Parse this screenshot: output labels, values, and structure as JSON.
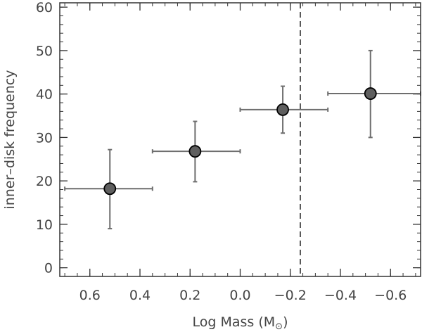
{
  "chart_data": {
    "type": "scatter",
    "title": "",
    "xlabel": "Log Mass (M",
    "xlabel_symbol": "⊙",
    "xlabel_close": ")",
    "ylabel": "inner–disk frequency",
    "x_reversed": true,
    "xlim": [
      0.72,
      -0.72
    ],
    "ylim": [
      -2,
      61
    ],
    "x_ticks": [
      {
        "value": 0.6,
        "label": "0.6"
      },
      {
        "value": 0.4,
        "label": "0.4"
      },
      {
        "value": 0.2,
        "label": "0.2"
      },
      {
        "value": 0.0,
        "label": "0.0"
      },
      {
        "value": -0.2,
        "label": "−0.2"
      },
      {
        "value": -0.4,
        "label": "−0.4"
      },
      {
        "value": -0.6,
        "label": "−0.6"
      }
    ],
    "x_minor_step": 0.05,
    "y_ticks": [
      {
        "value": 0,
        "label": "0"
      },
      {
        "value": 10,
        "label": "10"
      },
      {
        "value": 20,
        "label": "20"
      },
      {
        "value": 30,
        "label": "30"
      },
      {
        "value": 40,
        "label": "40"
      },
      {
        "value": 50,
        "label": "50"
      },
      {
        "value": 60,
        "label": "60"
      }
    ],
    "y_minor_step": 2,
    "grid": false,
    "vertical_line": {
      "x": -0.24,
      "style": "dashed"
    },
    "points": [
      {
        "x": 0.52,
        "y": 18.2,
        "x_lo": 0.35,
        "x_hi": 0.7,
        "y_lo": 9.0,
        "y_hi": 27.2
      },
      {
        "x": 0.18,
        "y": 26.8,
        "x_lo": 0.0,
        "x_hi": 0.35,
        "y_lo": 19.8,
        "y_hi": 33.7
      },
      {
        "x": -0.17,
        "y": 36.4,
        "x_lo": -0.35,
        "x_hi": 0.0,
        "y_lo": 31.0,
        "y_hi": 41.8
      },
      {
        "x": -0.52,
        "y": 40.1,
        "x_lo": -0.72,
        "x_hi": -0.35,
        "y_lo": 30.0,
        "y_hi": 50.0
      }
    ],
    "colors": {
      "marker_fill": "#5f5f5f",
      "marker_edge": "#000000",
      "errorbar": "#6e6e6e",
      "axis": "#333333"
    }
  }
}
